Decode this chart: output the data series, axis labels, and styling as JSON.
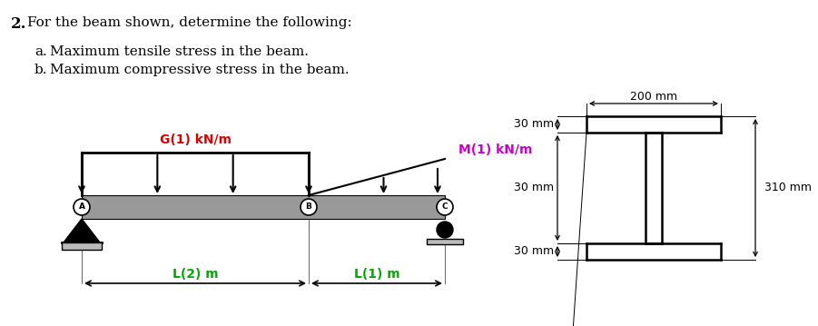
{
  "title_num": "2.",
  "title_text": "For the beam shown, determine the following:",
  "item_a": "a.  Maximum tensile stress in the beam.",
  "item_b": "b.  Maximum compressive stress in the beam.",
  "beam_color": "#999999",
  "load_label": "G(1) kN/m",
  "load_color": "#dd0000",
  "moment_label": "M(1) kN/m",
  "moment_color": "#cc00cc",
  "dim_L2_label": "L(2) m",
  "dim_L1_label": "L(1) m",
  "dim_color": "#00aa00",
  "background_color": "#ffffff",
  "cs_200mm": "200 mm",
  "cs_310mm": "310 mm",
  "cs_30mm_top": "30 mm",
  "cs_30mm_web": "30 mm",
  "cs_30mm_bot": "30 mm"
}
